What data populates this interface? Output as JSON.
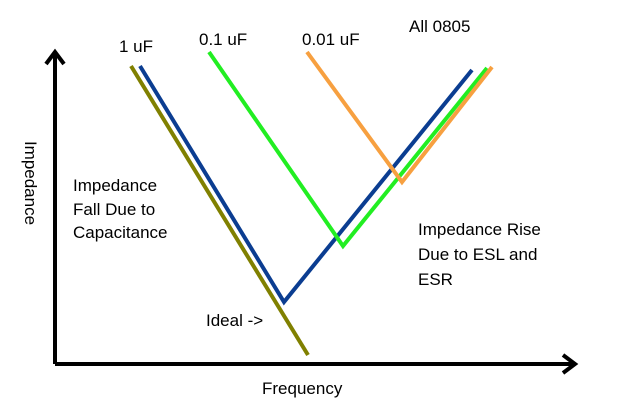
{
  "diagram": {
    "axes": {
      "x_label": "Frequency",
      "y_label": "Impedance"
    },
    "curve_labels": {
      "cap_1uf": "1 uF",
      "cap_0_1uf": "0.1 uF",
      "cap_0_01uf": "0.01 uF",
      "package": "All 0805"
    },
    "annotations": {
      "fall": [
        "Impedance",
        "Fall Due to",
        "Capacitance"
      ],
      "rise": [
        "Impedance Rise",
        "Due to ESL and",
        "ESR"
      ],
      "ideal": "Ideal ->"
    },
    "colors": {
      "axis": "#000000",
      "ideal": "#808000",
      "cap_1uf": "#0b3d91",
      "cap_0_1uf": "#22ee22",
      "cap_0_01uf": "#f7a040"
    }
  }
}
